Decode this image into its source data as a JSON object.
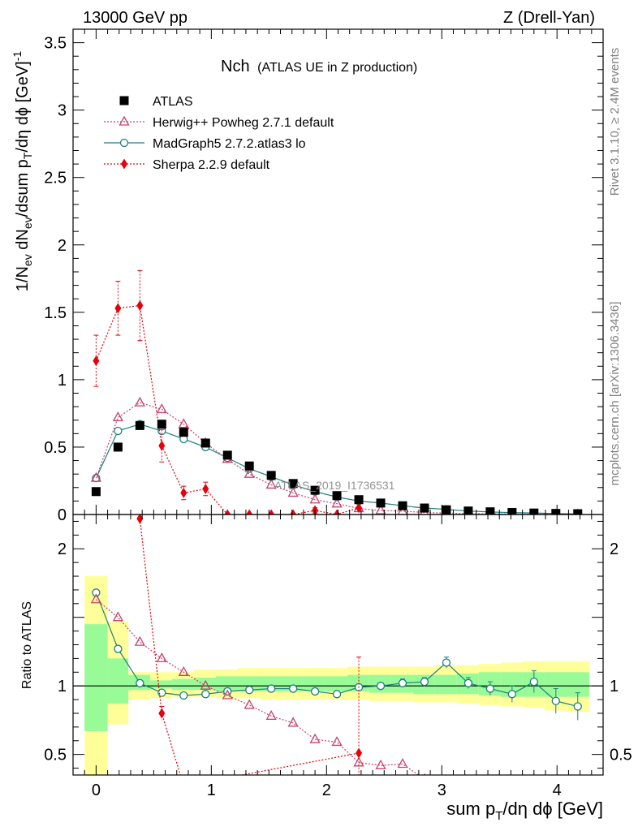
{
  "header": {
    "left": "13000 GeV pp",
    "right": "Z (Drell-Yan)"
  },
  "side_labels": {
    "rivet": "Rivet 3.1.10, ≥ 2.4M events",
    "mcplots": "mcplots.cern.ch [arXiv:1306.3436]"
  },
  "watermark": "ATLAS_2019_I1736531",
  "chart_data": {
    "type": "scatter",
    "title_main": "Nch",
    "title_sub": "(ATLAS UE in Z production)",
    "xlabel": "sum p_T/dη dϕ [GeV]",
    "ylabel": "1/N_ev dN_ev/dsum p_T/dη dϕ [GeV]^-1",
    "ratio_ylabel": "Ratio to ATLAS",
    "xlim": [
      -0.2,
      4.4
    ],
    "ylim": [
      0,
      3.6
    ],
    "ratio_ylim": [
      0.35,
      2.25
    ],
    "x_ticks": [
      "0",
      "1",
      "2",
      "3",
      "4"
    ],
    "y_ticks": [
      "0",
      "0.5",
      "1",
      "1.5",
      "2",
      "2.5",
      "3",
      "3.5"
    ],
    "ratio_ticks": [
      "0.5",
      "1",
      "2"
    ],
    "legend_position": "top-left",
    "x": [
      0.0,
      0.19,
      0.38,
      0.57,
      0.76,
      0.95,
      1.14,
      1.33,
      1.52,
      1.71,
      1.9,
      2.09,
      2.28,
      2.47,
      2.66,
      2.85,
      3.04,
      3.23,
      3.42,
      3.61,
      3.8,
      3.99,
      4.18
    ],
    "series": [
      {
        "name": "ATLAS",
        "color": "#000000",
        "marker": "square",
        "values": [
          0.17,
          0.5,
          0.66,
          0.67,
          0.61,
          0.53,
          0.44,
          0.36,
          0.29,
          0.23,
          0.18,
          0.14,
          0.11,
          0.085,
          0.065,
          0.048,
          0.035,
          0.026,
          0.02,
          0.015,
          0.011,
          0.008,
          0.006
        ]
      },
      {
        "name": "Herwig++ Powheg 2.7.1 default",
        "color": "#c7416b",
        "marker": "triangle-open",
        "line": "dotted",
        "values": [
          0.27,
          0.72,
          0.83,
          0.78,
          0.67,
          0.53,
          0.41,
          0.3,
          0.22,
          0.16,
          0.11,
          0.08,
          0.045,
          0.03,
          0.025,
          0.015,
          0.01,
          0.007,
          0.005,
          0.003,
          0.002,
          0.0015,
          0.001
        ],
        "ratio": [
          1.63,
          1.5,
          1.32,
          1.2,
          1.1,
          1.0,
          0.93,
          0.86,
          0.78,
          0.73,
          0.61,
          0.59,
          0.44,
          0.42,
          0.43,
          0.32,
          0.3,
          0.27,
          0.25,
          0.2,
          0.18,
          0.17,
          0.16
        ]
      },
      {
        "name": "MadGraph5 2.7.2.atlas3 lo",
        "color": "#1d7f7e",
        "marker": "circle-open",
        "line": "solid",
        "values": [
          0.27,
          0.62,
          0.67,
          0.62,
          0.56,
          0.5,
          0.42,
          0.34,
          0.28,
          0.22,
          0.17,
          0.13,
          0.1,
          0.085,
          0.065,
          0.048,
          0.038,
          0.026,
          0.019,
          0.014,
          0.0115,
          0.007,
          0.005
        ],
        "ratio": [
          1.68,
          1.27,
          1.02,
          0.95,
          0.93,
          0.94,
          0.96,
          0.97,
          0.98,
          0.98,
          0.96,
          0.94,
          0.99,
          1.0,
          1.02,
          1.03,
          1.17,
          1.02,
          0.98,
          0.94,
          1.03,
          0.89,
          0.85
        ],
        "ratio_err": [
          0.02,
          0.02,
          0.01,
          0.01,
          0.01,
          0.01,
          0.01,
          0.01,
          0.01,
          0.01,
          0.01,
          0.01,
          0.02,
          0.02,
          0.03,
          0.03,
          0.04,
          0.04,
          0.05,
          0.06,
          0.08,
          0.09,
          0.1
        ]
      },
      {
        "name": "Sherpa 2.2.9 default",
        "color": "#e8000b",
        "marker": "diamond",
        "line": "dotted",
        "values": [
          1.14,
          1.53,
          1.55,
          0.51,
          0.16,
          0.19,
          0.0,
          0.0,
          0.0,
          0.0,
          0.03,
          0.0,
          0.05
        ],
        "errors": [
          0.19,
          0.2,
          0.26,
          0.12,
          0.05,
          0.05,
          0.0,
          0.0,
          0.0,
          0.0,
          0.02,
          0.0,
          0.05
        ],
        "ratio": [
          null,
          null,
          2.22,
          0.8,
          0.27,
          null,
          null,
          null,
          null,
          null,
          null,
          null,
          0.51
        ],
        "ratio_err": [
          0,
          0,
          0.04,
          0.05,
          0.0,
          0,
          0,
          0,
          0,
          0,
          0,
          0,
          0.7
        ]
      }
    ],
    "uncertainty_bands": {
      "bins": [
        -0.1,
        0.1,
        0.28,
        0.47,
        0.66,
        0.85,
        1.04,
        1.23,
        1.42,
        1.61,
        1.8,
        1.99,
        2.18,
        2.37,
        2.56,
        2.75,
        2.94,
        3.13,
        3.32,
        3.51,
        3.7,
        3.89,
        4.08,
        4.28
      ],
      "inner": [
        [
          0.67,
          1.45
        ],
        [
          0.87,
          1.2
        ],
        [
          0.97,
          1.08
        ],
        [
          0.98,
          1.04
        ],
        [
          0.97,
          1.05
        ],
        [
          0.97,
          1.06
        ],
        [
          0.96,
          1.07
        ],
        [
          0.96,
          1.07
        ],
        [
          0.96,
          1.07
        ],
        [
          0.96,
          1.07
        ],
        [
          0.96,
          1.07
        ],
        [
          0.96,
          1.07
        ],
        [
          0.96,
          1.08
        ],
        [
          0.95,
          1.08
        ],
        [
          0.95,
          1.08
        ],
        [
          0.94,
          1.08
        ],
        [
          0.94,
          1.08
        ],
        [
          0.94,
          1.09
        ],
        [
          0.93,
          1.1
        ],
        [
          0.92,
          1.1
        ],
        [
          0.92,
          1.1
        ],
        [
          0.92,
          1.1
        ],
        [
          0.92,
          1.1
        ]
      ],
      "outer": [
        [
          0.35,
          1.8
        ],
        [
          0.72,
          1.47
        ],
        [
          0.9,
          1.1
        ],
        [
          0.91,
          1.1
        ],
        [
          0.92,
          1.1
        ],
        [
          0.92,
          1.12
        ],
        [
          0.91,
          1.12
        ],
        [
          0.91,
          1.13
        ],
        [
          0.9,
          1.13
        ],
        [
          0.9,
          1.13
        ],
        [
          0.9,
          1.13
        ],
        [
          0.9,
          1.13
        ],
        [
          0.9,
          1.14
        ],
        [
          0.89,
          1.14
        ],
        [
          0.89,
          1.14
        ],
        [
          0.88,
          1.14
        ],
        [
          0.88,
          1.15
        ],
        [
          0.87,
          1.15
        ],
        [
          0.86,
          1.16
        ],
        [
          0.85,
          1.17
        ],
        [
          0.84,
          1.18
        ],
        [
          0.82,
          1.18
        ],
        [
          0.81,
          1.18
        ]
      ],
      "inner_color": "#98fb98",
      "outer_color": "#ffff99"
    }
  }
}
